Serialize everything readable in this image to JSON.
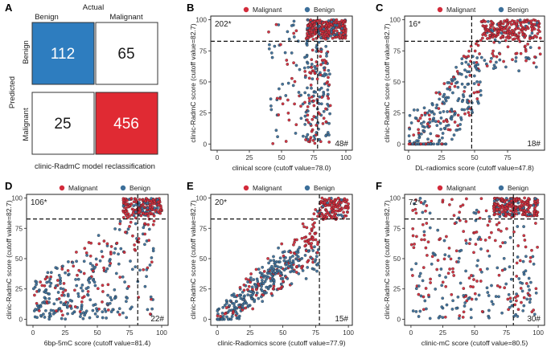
{
  "colors": {
    "malignant": "#d32b3b",
    "benign": "#3c6f9a",
    "cm_benign_fill": "#2e7dbf",
    "cm_malignant_fill": "#e02a33"
  },
  "confusion": {
    "letter": "A",
    "actual_label": "Actual",
    "predicted_label": "Predicted",
    "col_labels": [
      "Benign",
      "Malignant"
    ],
    "row_labels": [
      "Benign",
      "Malignant"
    ],
    "values": [
      [
        "112",
        "65"
      ],
      [
        "25",
        "456"
      ]
    ],
    "caption": "clinic-RadmC model reclassification"
  },
  "chart_data": [
    {
      "letter": "B",
      "type": "scatter",
      "legend": [
        "Malignant",
        "Benign"
      ],
      "xlabel": "clinical score (cutoff value=78.0)",
      "ylabel": "clinic-RadmC score (cutoff value=82.7)",
      "xlim": [
        -5,
        105
      ],
      "ylim": [
        -5,
        103
      ],
      "xticks": [
        0,
        25,
        50,
        75,
        100
      ],
      "yticks": [
        0,
        25,
        50,
        75,
        100
      ],
      "vcut": 78.0,
      "hcut": 82.7,
      "tl_count": "202*",
      "br_count": "48#",
      "points": {
        "x_dist": "B",
        "seed": 11
      }
    },
    {
      "letter": "C",
      "type": "scatter",
      "legend": [
        "Malignant",
        "Benign"
      ],
      "xlabel": "DL-radiomics score (cutoff value=47.8)",
      "ylabel": "clinic-RadmC score (cutoff value=82.7)",
      "xlim": [
        -3,
        103
      ],
      "ylim": [
        -5,
        103
      ],
      "xticks": [
        0,
        25,
        50,
        75
      ],
      "yticks": [
        0,
        25,
        50,
        75,
        100
      ],
      "vcut": 47.8,
      "hcut": 82.7,
      "tl_count": "16*",
      "br_count": "18#",
      "points": {
        "x_dist": "C",
        "seed": 23
      }
    },
    {
      "letter": "D",
      "type": "scatter",
      "legend": [
        "Malignant",
        "Benign"
      ],
      "xlabel": "6bp-5mC score (cutoff value=81.4)",
      "ylabel": "clinic-RadmC score (cutoff value=82.7)",
      "xlim": [
        -5,
        105
      ],
      "ylim": [
        -5,
        103
      ],
      "xticks": [
        0,
        25,
        50,
        75,
        100
      ],
      "yticks": [
        0,
        25,
        50,
        75,
        100
      ],
      "vcut": 81.4,
      "hcut": 82.7,
      "tl_count": "106*",
      "br_count": "22#",
      "points": {
        "x_dist": "D",
        "seed": 37
      }
    },
    {
      "letter": "E",
      "type": "scatter",
      "legend": [
        "Malignant",
        "Benign"
      ],
      "xlabel": "clinic-Radiomics score (cutoff value=77.9)",
      "ylabel": "clinic-RadmC score (cutoff value=82.7)",
      "xlim": [
        -5,
        103
      ],
      "ylim": [
        -5,
        103
      ],
      "xticks": [
        0,
        25,
        50,
        75,
        100
      ],
      "yticks": [
        0,
        25,
        50,
        75,
        100
      ],
      "vcut": 77.9,
      "hcut": 82.7,
      "tl_count": "20*",
      "br_count": "15#",
      "points": {
        "x_dist": "E",
        "seed": 51
      }
    },
    {
      "letter": "F",
      "type": "scatter",
      "legend": [
        "Malignant",
        "Benign"
      ],
      "xlabel": "clinic-mC score (cutoff value=80.5)",
      "ylabel": "clinic-RadmC score (cutoff value=82.7)",
      "xlim": [
        -5,
        105
      ],
      "ylim": [
        -5,
        103
      ],
      "xticks": [
        0,
        25,
        50,
        75,
        100
      ],
      "yticks": [
        0,
        25,
        50,
        75,
        100
      ],
      "vcut": 80.5,
      "hcut": 82.7,
      "tl_count": "72*",
      "br_count": "30#",
      "points": {
        "x_dist": "F",
        "seed": 67
      }
    }
  ]
}
